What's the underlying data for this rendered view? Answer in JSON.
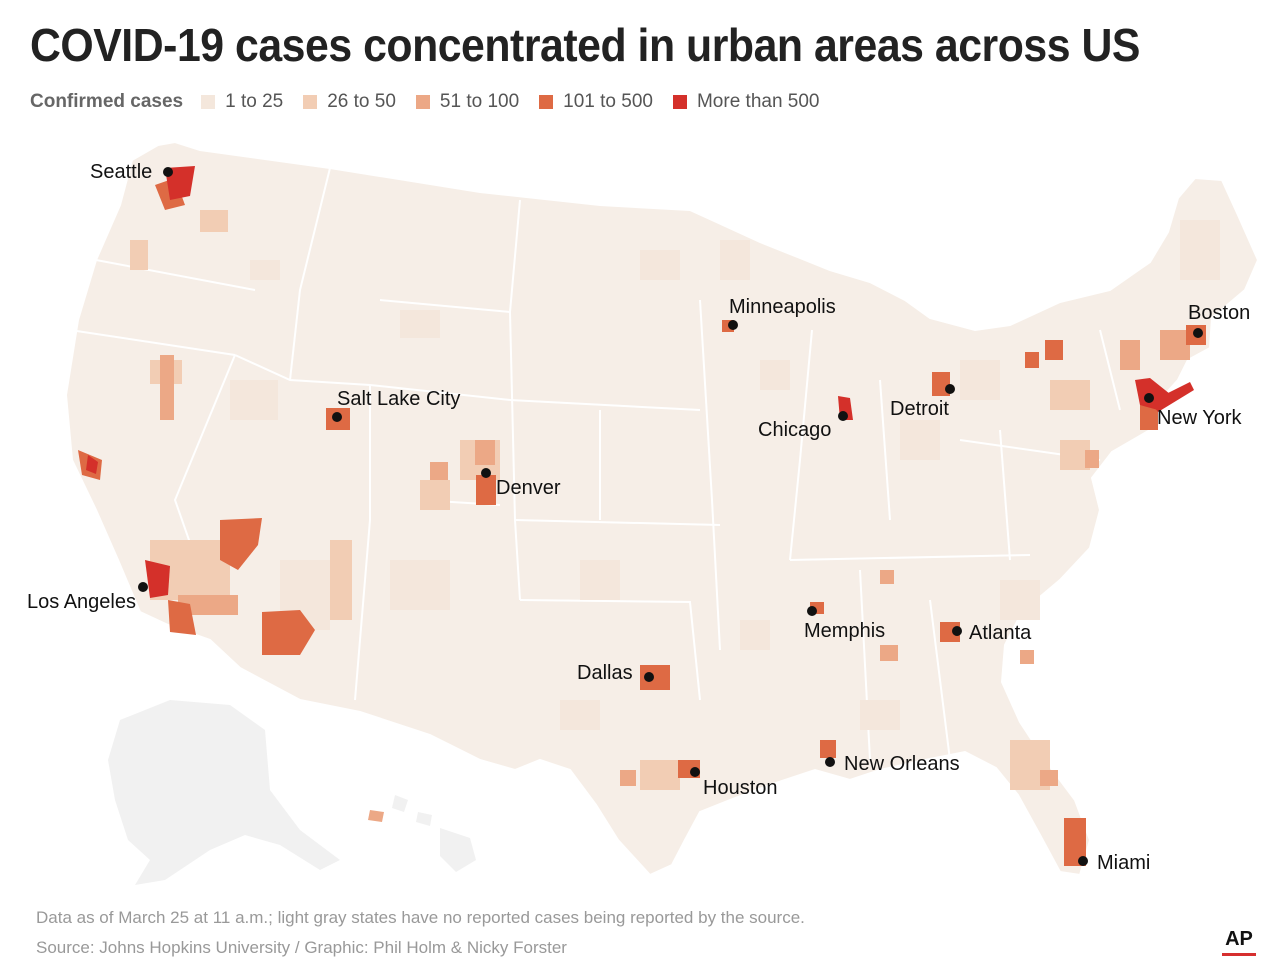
{
  "title": "COVID-19 cases concentrated in urban areas across US",
  "legend": {
    "title": "Confirmed cases",
    "items": [
      {
        "label": "1 to 25",
        "color": "#f4e7dc"
      },
      {
        "label": "26 to 50",
        "color": "#f2cdb4"
      },
      {
        "label": "51 to 100",
        "color": "#eca886"
      },
      {
        "label": "101 to 500",
        "color": "#de6a44"
      },
      {
        "label": "More than 500",
        "color": "#d4302a"
      }
    ]
  },
  "cities": [
    {
      "name": "Seattle",
      "lat": 47.61,
      "lon": -122.33
    },
    {
      "name": "Minneapolis",
      "lat": 44.98,
      "lon": -93.27
    },
    {
      "name": "Boston",
      "lat": 42.36,
      "lon": -71.06
    },
    {
      "name": "Salt Lake City",
      "lat": 40.76,
      "lon": -111.89
    },
    {
      "name": "Detroit",
      "lat": 42.33,
      "lon": -83.05
    },
    {
      "name": "New York",
      "lat": 40.71,
      "lon": -74.01
    },
    {
      "name": "Chicago",
      "lat": 41.88,
      "lon": -87.63
    },
    {
      "name": "Denver",
      "lat": 39.74,
      "lon": -104.99
    },
    {
      "name": "Los Angeles",
      "lat": 34.05,
      "lon": -118.24
    },
    {
      "name": "Memphis",
      "lat": 35.15,
      "lon": -90.05
    },
    {
      "name": "Atlanta",
      "lat": 33.75,
      "lon": -84.39
    },
    {
      "name": "Dallas",
      "lat": 32.78,
      "lon": -96.8
    },
    {
      "name": "New Orleans",
      "lat": 29.95,
      "lon": -90.07
    },
    {
      "name": "Houston",
      "lat": 29.76,
      "lon": -95.37
    },
    {
      "name": "Miami",
      "lat": 25.76,
      "lon": -80.19
    }
  ],
  "footer": {
    "note": "Data as of March 25 at 11 a.m.; light gray states have no reported cases being reported by the source.",
    "source": "Source: Johns Hopkins University / Graphic: Phil Holm & Nicky Forster"
  },
  "logo": "AP",
  "colors": {
    "no_data": "#f3f3f3",
    "border": "#ffffff",
    "dot": "#111111"
  }
}
